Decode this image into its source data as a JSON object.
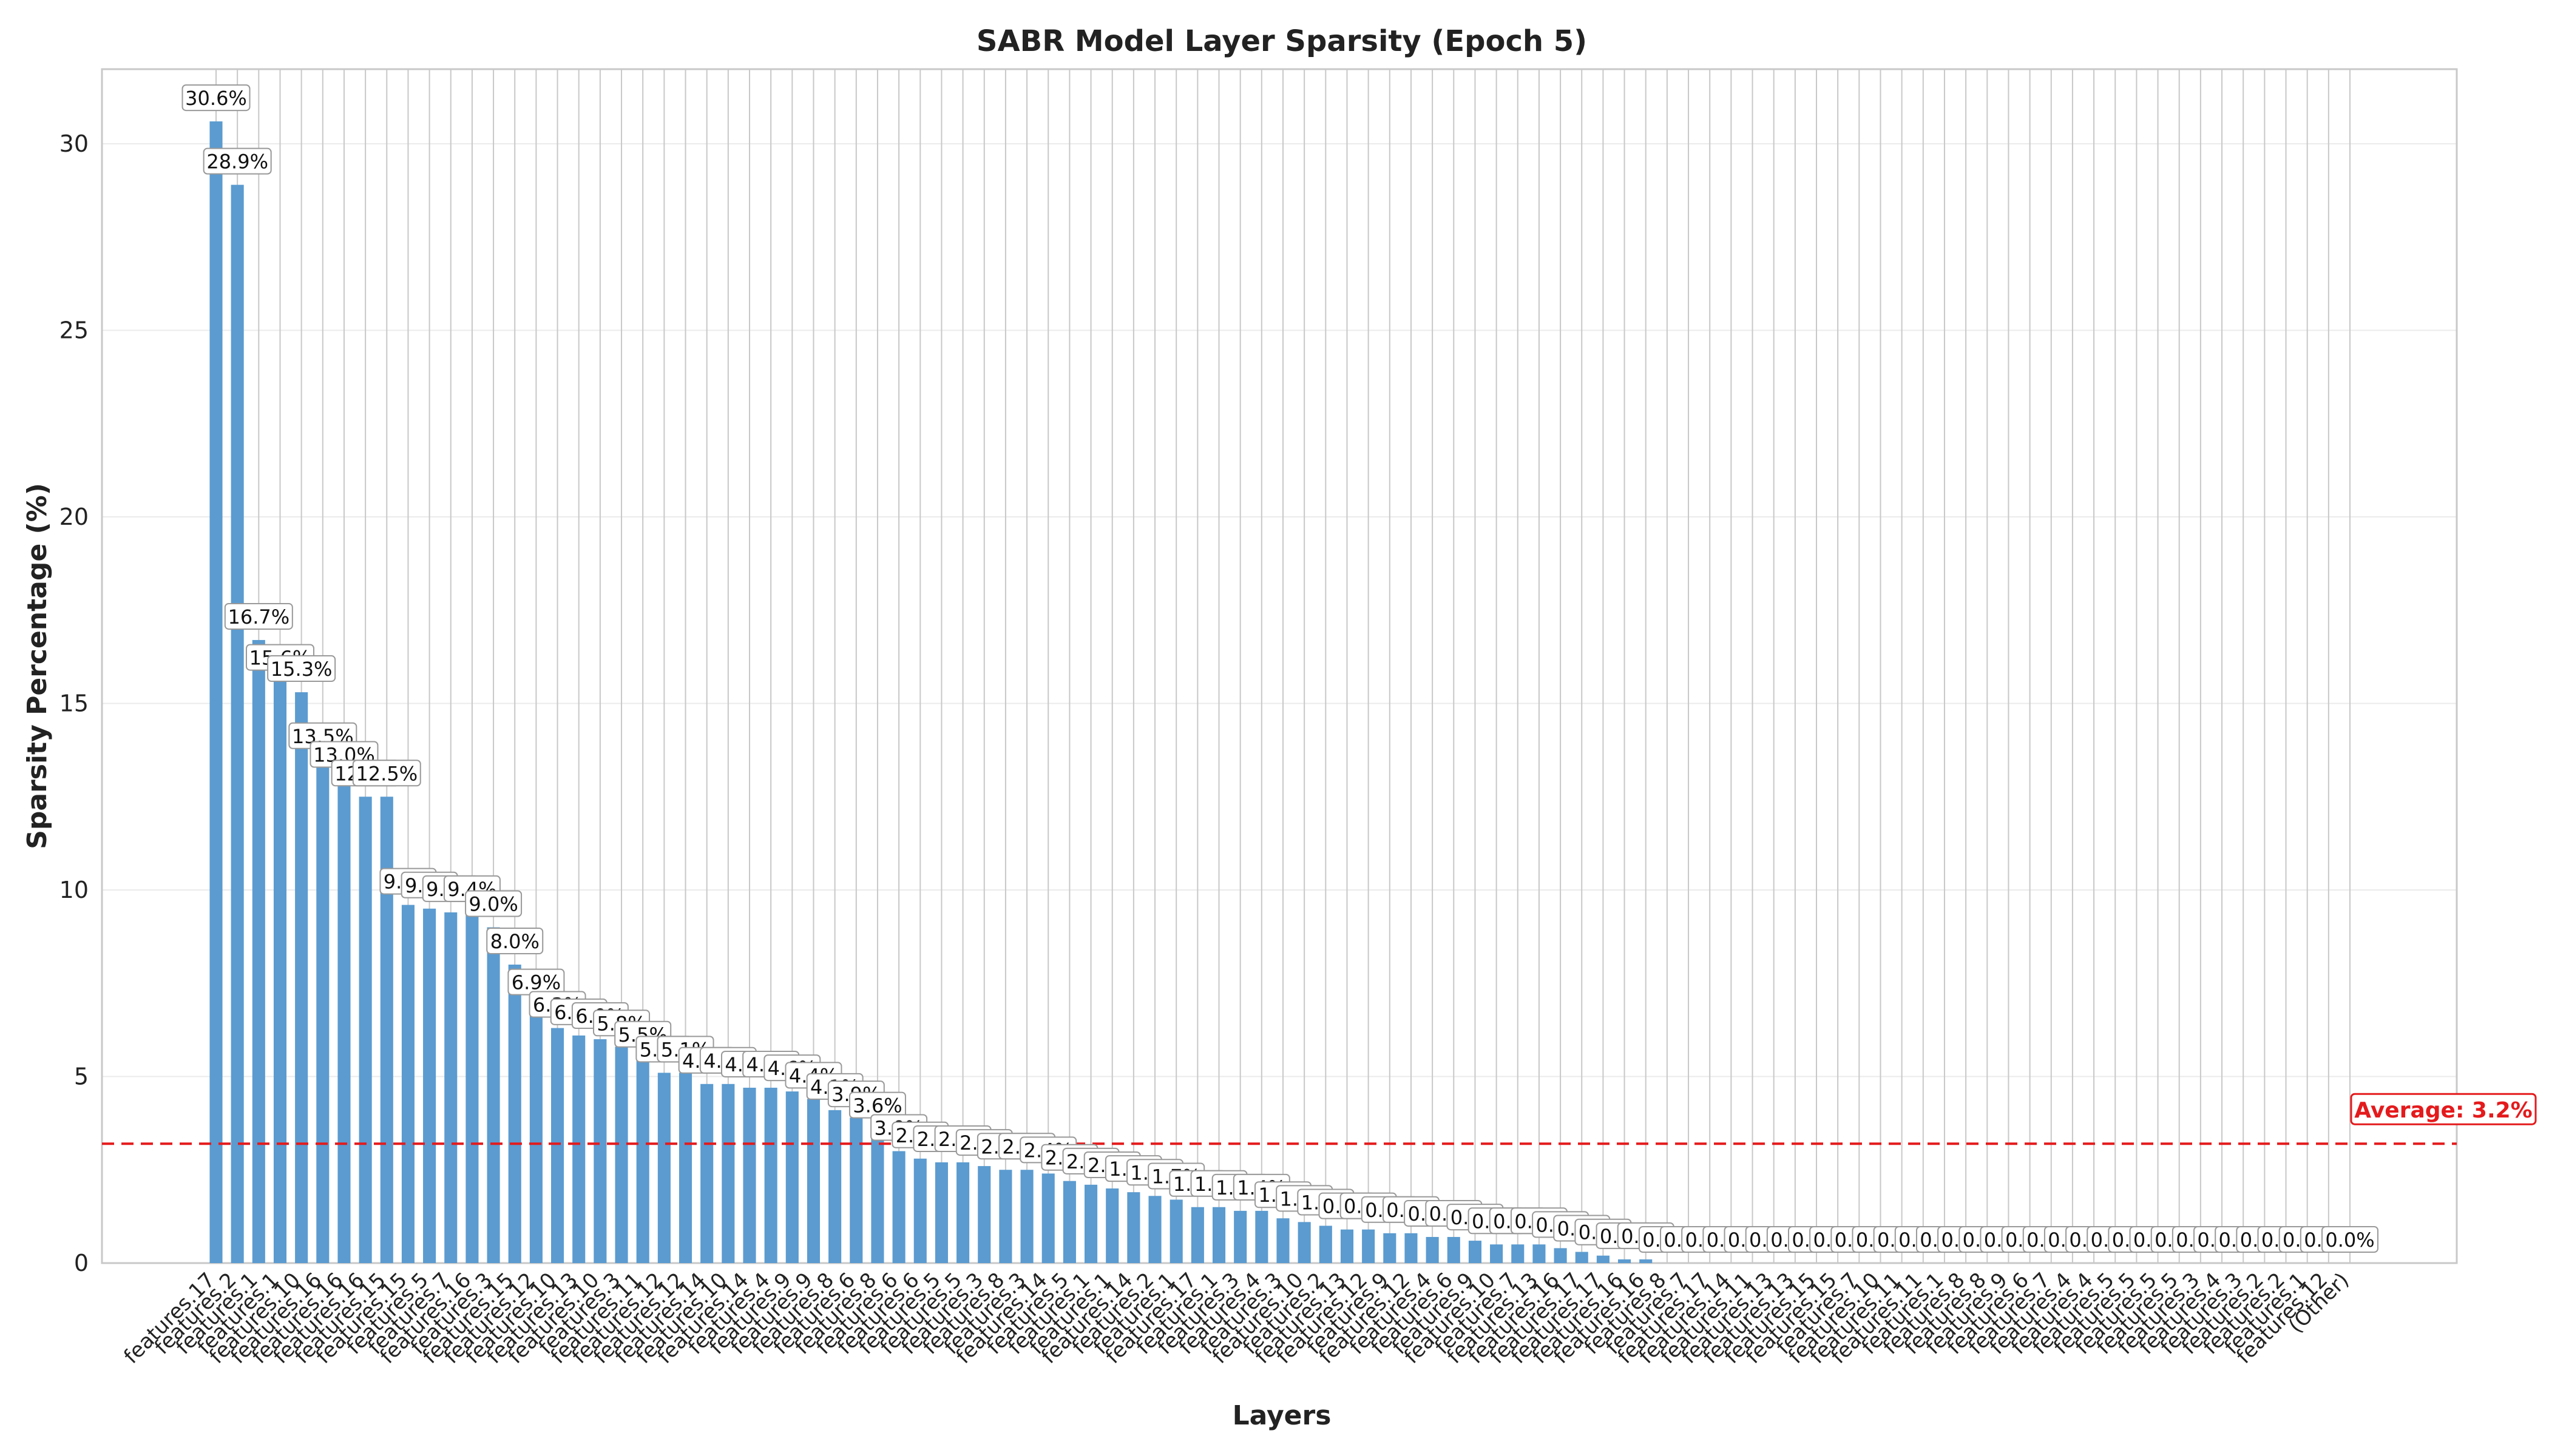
{
  "chart_data": {
    "type": "bar",
    "title": "SABR Model Layer Sparsity (Epoch 5)",
    "xlabel": "Layers",
    "ylabel": "Sparsity Percentage (%)",
    "ylim": [
      0,
      32
    ],
    "yticks": [
      0,
      5,
      10,
      15,
      20,
      25,
      30
    ],
    "grid": true,
    "bar_color": "#5b9bd0",
    "average": {
      "value": 3.2,
      "label": "Average: 3.2%",
      "color": "#e41a1c"
    },
    "categories": [
      "features.17",
      "features.2",
      "features.1",
      "features.1",
      "features.10",
      "features.16",
      "features.16",
      "features.16",
      "features.15",
      "features.15",
      "features.5",
      "features.7",
      "features.16",
      "features.3",
      "features.15",
      "features.12",
      "features.10",
      "features.13",
      "features.10",
      "features.3",
      "features.11",
      "features.12",
      "features.12",
      "features.14",
      "features.10",
      "features.14",
      "features.4",
      "features.9",
      "features.9",
      "features.8",
      "features.6",
      "features.8",
      "features.6",
      "features.6",
      "features.5",
      "features.5",
      "features.3",
      "features.8",
      "features.3",
      "features.14",
      "features.5",
      "features.1",
      "features.1",
      "features.14",
      "features.2",
      "features.1",
      "features.17",
      "features.1",
      "features.3",
      "features.4",
      "features.3",
      "features.10",
      "features.2",
      "features.13",
      "features.12",
      "features.9",
      "features.12",
      "features.4",
      "features.6",
      "features.9",
      "features.10",
      "features.7",
      "features.13",
      "features.16",
      "features.17",
      "features.17",
      "features.16",
      "features.16",
      "features.8",
      "features.7",
      "features.17",
      "features.14",
      "features.11",
      "features.13",
      "features.13",
      "features.15",
      "features.15",
      "features.7",
      "features.10",
      "features.11",
      "features.11",
      "features.1",
      "features.8",
      "features.8",
      "features.9",
      "features.6",
      "features.7",
      "features.4",
      "features.4",
      "features.5",
      "features.5",
      "features.5",
      "features.5",
      "features.3",
      "features.4",
      "features.3",
      "features.2",
      "features.2",
      "features.1",
      "features.12",
      "(Other)"
    ],
    "values": [
      30.6,
      28.9,
      16.7,
      15.6,
      15.3,
      13.5,
      13.0,
      12.5,
      12.5,
      9.6,
      9.5,
      9.4,
      9.4,
      9.0,
      8.0,
      6.9,
      6.3,
      6.1,
      6.0,
      5.8,
      5.5,
      5.1,
      5.1,
      4.8,
      4.8,
      4.7,
      4.7,
      4.6,
      4.4,
      4.1,
      3.9,
      3.6,
      3.0,
      2.8,
      2.7,
      2.7,
      2.6,
      2.5,
      2.5,
      2.4,
      2.2,
      2.1,
      2.0,
      1.9,
      1.8,
      1.7,
      1.5,
      1.5,
      1.4,
      1.4,
      1.2,
      1.1,
      1.0,
      0.9,
      0.9,
      0.8,
      0.8,
      0.7,
      0.7,
      0.6,
      0.5,
      0.5,
      0.5,
      0.4,
      0.3,
      0.2,
      0.1,
      0.1,
      0.0,
      0.0,
      0.0,
      0.0,
      0.0,
      0.0,
      0.0,
      0.0,
      0.0,
      0.0,
      0.0,
      0.0,
      0.0,
      0.0,
      0.0,
      0.0,
      0.0,
      0.0,
      0.0,
      0.0,
      0.0,
      0.0,
      0.0,
      0.0,
      0.0,
      0.0,
      0.0,
      0.0,
      0.0,
      0.0,
      0.0,
      0.0,
      0.0
    ],
    "data_labels": [
      "30.6%",
      "28.9%",
      "16.7%",
      "15.6%",
      "15.3%",
      "13.5%",
      "13.0%",
      "12.5%",
      "12.5%",
      "9.6%",
      "9.5%",
      "9.4%",
      "9.4%",
      "9.0%",
      "8.0%",
      "6.9%",
      "6.3%",
      "6.1%",
      "6.0%",
      "5.8%",
      "5.5%",
      "5.1%",
      "5.1%",
      "4.8%",
      "4.8%",
      "4.7%",
      "4.7%",
      "4.6%",
      "4.4%",
      "4.1%",
      "3.9%",
      "3.6%",
      "3.0%",
      "2.8%",
      "2.7%",
      "2.7%",
      "2.6%",
      "2.5%",
      "2.5%",
      "2.4%",
      "2.2%",
      "2.1%",
      "2.0%",
      "1.9%",
      "1.8%",
      "1.7%",
      "1.5%",
      "1.5%",
      "1.4%",
      "1.4%",
      "1.2%",
      "1.1%",
      "1.0%",
      "0.9%",
      "0.9%",
      "0.8%",
      "0.8%",
      "0.7%",
      "0.7%",
      "0.6%",
      "0.5%",
      "0.5%",
      "0.5%",
      "0.4%",
      "0.3%",
      "0.2%",
      "0.1%",
      "0.1%",
      "0.0%",
      "0.0%",
      "0.0%",
      "0.0%",
      "0.0%",
      "0.0%",
      "0.0%",
      "0.0%",
      "0.0%",
      "0.0%",
      "0.0%",
      "0.0%",
      "0.0%",
      "0.0%",
      "0.0%",
      "0.0%",
      "0.0%",
      "0.0%",
      "0.0%",
      "0.0%",
      "0.0%",
      "0.0%",
      "0.0%",
      "0.0%",
      "0.0%",
      "0.0%",
      "0.0%",
      "0.0%",
      "0.0%",
      "0.0%",
      "0.0%",
      "0.0%",
      "0.0%"
    ]
  }
}
